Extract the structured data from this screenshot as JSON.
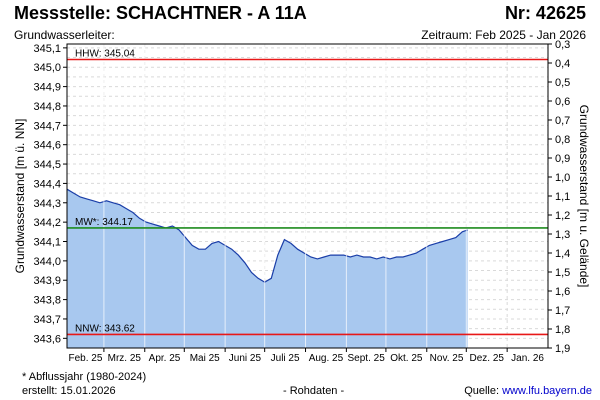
{
  "header": {
    "title": "Messstelle: SCHACHTNER - A 11A",
    "nr": "Nr: 42625",
    "aquifer": "Grundwasserleiter:",
    "period": "Zeitraum: Feb 2025 - Jan 2026"
  },
  "footer": {
    "footnote": "* Abflussjahr (1980-2024)",
    "created": "erstellt:  15.01.2026",
    "raw": "- Rohdaten -",
    "source_label": "Quelle: ",
    "source_link": "www.lfu.bayern.de"
  },
  "colors": {
    "fill": "#a8c8ef",
    "line": "#1a3ea8",
    "hhw": "#e81818",
    "nnw": "#e81818",
    "mw": "#1e8c1e",
    "grid": "#d9d9d9"
  },
  "chart_data": {
    "type": "area",
    "ylabel": "Grundwasserstand [m ü. NN]",
    "ylabel_right": "Grundwasserstand [m u. Gelände]",
    "ylim": [
      343.55,
      345.12
    ],
    "ylim_right": [
      0.3,
      1.9
    ],
    "yticks": [
      "345,1",
      "345,0",
      "344,9",
      "344,8",
      "344,7",
      "344,6",
      "344,5",
      "344,4",
      "344,3",
      "344,2",
      "344,1",
      "344,0",
      "343,9",
      "343,8",
      "343,7",
      "343,6"
    ],
    "yticks_right": [
      "0,3",
      "0,4",
      "0,5",
      "0,6",
      "0,7",
      "0,8",
      "0,9",
      "1,0",
      "1,1",
      "1,2",
      "1,3",
      "1,4",
      "1,5",
      "1,6",
      "1,7",
      "1,8",
      "1,9"
    ],
    "xticks": [
      "Feb. 25",
      "Mrz. 25",
      "Apr. 25",
      "Mai 25",
      "Juni 25",
      "Juli 25",
      "Aug. 25",
      "Sept. 25",
      "Okt. 25",
      "Nov. 25",
      "Dez. 25",
      "Jan. 26"
    ],
    "reference_lines": [
      {
        "label": "HHW: 345.04",
        "value": 345.04,
        "kind": "hhw"
      },
      {
        "label": "MW*: 344.17",
        "value": 344.17,
        "kind": "mw"
      },
      {
        "label": "NNW: 343.62",
        "value": 343.62,
        "kind": "nnw"
      }
    ],
    "series": [
      {
        "x": [
          "2025-02-01",
          "2025-02-06",
          "2025-02-11",
          "2025-02-16",
          "2025-02-21",
          "2025-02-26",
          "2025-03-03",
          "2025-03-08",
          "2025-03-13",
          "2025-03-18",
          "2025-03-23",
          "2025-03-28",
          "2025-04-02",
          "2025-04-07",
          "2025-04-12",
          "2025-04-17",
          "2025-04-22",
          "2025-04-27",
          "2025-05-02",
          "2025-05-07",
          "2025-05-12",
          "2025-05-17",
          "2025-05-22",
          "2025-05-27",
          "2025-06-01",
          "2025-06-06",
          "2025-06-11",
          "2025-06-16",
          "2025-06-21",
          "2025-06-26",
          "2025-07-01",
          "2025-07-06",
          "2025-07-11",
          "2025-07-16",
          "2025-07-21",
          "2025-07-26",
          "2025-07-31",
          "2025-08-05",
          "2025-08-10",
          "2025-08-15",
          "2025-08-20",
          "2025-08-25",
          "2025-08-30",
          "2025-09-04",
          "2025-09-09",
          "2025-09-14",
          "2025-09-19",
          "2025-09-24",
          "2025-09-29",
          "2025-10-04",
          "2025-10-09",
          "2025-10-14",
          "2025-10-19",
          "2025-10-24",
          "2025-10-29",
          "2025-11-03",
          "2025-11-08",
          "2025-11-13",
          "2025-11-18",
          "2025-11-23",
          "2025-11-28",
          "2025-12-02"
        ],
        "values": [
          344.37,
          344.35,
          344.33,
          344.32,
          344.31,
          344.3,
          344.31,
          344.3,
          344.29,
          344.27,
          344.25,
          344.22,
          344.2,
          344.19,
          344.18,
          344.17,
          344.18,
          344.16,
          344.12,
          344.08,
          344.06,
          344.06,
          344.09,
          344.1,
          344.08,
          344.06,
          344.03,
          343.99,
          343.94,
          343.91,
          343.89,
          343.91,
          344.03,
          344.11,
          344.09,
          344.06,
          344.04,
          344.02,
          344.01,
          344.02,
          344.03,
          344.03,
          344.03,
          344.02,
          344.03,
          344.02,
          344.02,
          344.01,
          344.02,
          344.01,
          344.02,
          344.02,
          344.03,
          344.04,
          344.06,
          344.08,
          344.09,
          344.1,
          344.11,
          344.12,
          344.15,
          344.16
        ]
      }
    ],
    "grid": true
  }
}
